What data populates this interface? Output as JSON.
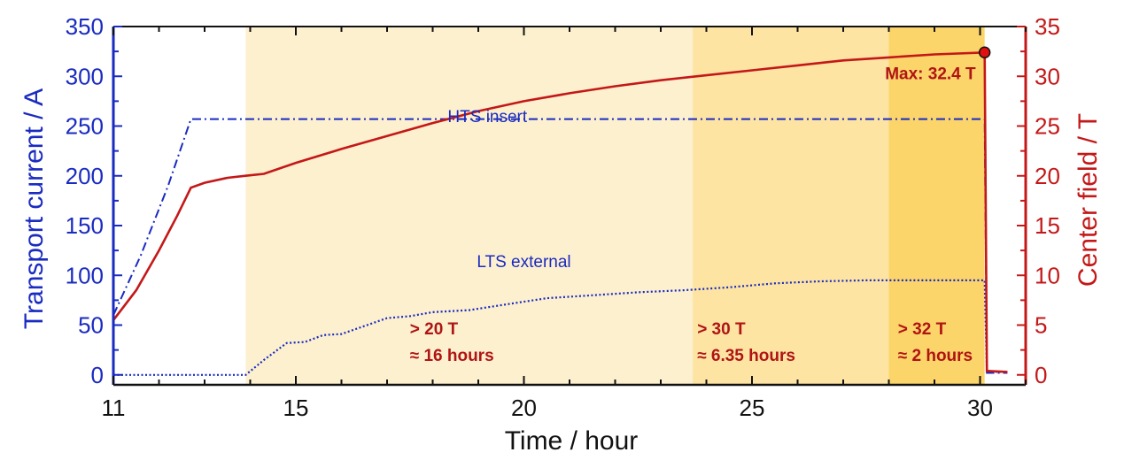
{
  "chart_data": {
    "type": "line",
    "title": "",
    "xlabel": "Time / hour",
    "ylabel_left": "Transport current / A",
    "ylabel_right": "Center field / T",
    "xlim": [
      11,
      31
    ],
    "ylim_left": [
      -10,
      350
    ],
    "ylim_right": [
      -1,
      35
    ],
    "x_ticks": [
      11,
      15,
      20,
      25,
      30
    ],
    "y_left_ticks": [
      0,
      50,
      100,
      150,
      200,
      250,
      300,
      350
    ],
    "y_right_ticks": [
      0,
      5,
      10,
      15,
      20,
      25,
      30,
      35
    ],
    "colors": {
      "current_axis": "#1a2bc0",
      "field_axis": "#c41818",
      "band_20T": "#fdf0cf",
      "band_30T": "#fde4a3",
      "band_32T": "#fbd46a"
    },
    "shaded_regions": [
      {
        "x_start": 13.9,
        "x_end": 23.7,
        "label_line1": "> 20 T",
        "label_line2": "≈ 16 hours"
      },
      {
        "x_start": 23.7,
        "x_end": 28.0,
        "label_line1": "> 30 T",
        "label_line2": "≈ 6.35 hours"
      },
      {
        "x_start": 28.0,
        "x_end": 30.1,
        "label_line1": "> 32 T",
        "label_line2": "≈ 2 hours"
      }
    ],
    "series": [
      {
        "name": "HTS insert",
        "axis": "left",
        "style": "dash-dot",
        "points": [
          [
            11.0,
            60
          ],
          [
            11.6,
            120
          ],
          [
            12.2,
            190
          ],
          [
            12.7,
            257
          ],
          [
            30.0,
            257
          ],
          [
            30.1,
            257
          ],
          [
            30.15,
            2
          ],
          [
            30.6,
            2
          ]
        ]
      },
      {
        "name": "LTS external",
        "axis": "left",
        "style": "dotted",
        "points": [
          [
            11.0,
            0
          ],
          [
            13.9,
            0
          ],
          [
            14.3,
            15
          ],
          [
            14.8,
            32
          ],
          [
            15.2,
            33
          ],
          [
            15.6,
            40
          ],
          [
            16.0,
            41
          ],
          [
            16.5,
            49
          ],
          [
            17.0,
            57
          ],
          [
            17.5,
            59
          ],
          [
            18.0,
            63
          ],
          [
            18.8,
            65
          ],
          [
            19.5,
            70
          ],
          [
            20.5,
            77
          ],
          [
            21.5,
            80
          ],
          [
            22.5,
            83
          ],
          [
            23.5,
            85
          ],
          [
            24.5,
            88
          ],
          [
            25.5,
            92
          ],
          [
            26.5,
            94
          ],
          [
            27.5,
            95
          ],
          [
            30.1,
            95
          ],
          [
            30.15,
            3
          ],
          [
            30.6,
            3
          ]
        ]
      },
      {
        "name": "Center field",
        "axis": "right",
        "style": "solid",
        "points": [
          [
            11.0,
            5.5
          ],
          [
            11.5,
            8.5
          ],
          [
            12.0,
            12.5
          ],
          [
            12.4,
            16.0
          ],
          [
            12.7,
            18.8
          ],
          [
            13.0,
            19.3
          ],
          [
            13.5,
            19.8
          ],
          [
            13.9,
            20.0
          ],
          [
            14.3,
            20.2
          ],
          [
            15.0,
            21.3
          ],
          [
            16.0,
            22.7
          ],
          [
            17.0,
            24.0
          ],
          [
            18.0,
            25.3
          ],
          [
            19.0,
            26.5
          ],
          [
            20.0,
            27.5
          ],
          [
            21.0,
            28.3
          ],
          [
            22.0,
            29.0
          ],
          [
            23.0,
            29.6
          ],
          [
            24.0,
            30.1
          ],
          [
            25.0,
            30.6
          ],
          [
            26.0,
            31.1
          ],
          [
            27.0,
            31.6
          ],
          [
            28.0,
            31.9
          ],
          [
            29.0,
            32.2
          ],
          [
            30.1,
            32.4
          ],
          [
            30.15,
            0.4
          ],
          [
            30.6,
            0.3
          ]
        ]
      }
    ],
    "annotations": {
      "max_label": "Max: 32.4 T",
      "max_point": [
        30.1,
        32.4
      ],
      "hts_label": "HTS insert",
      "hts_label_pos": [
        19.2,
        270
      ],
      "lts_label": "LTS external",
      "lts_label_pos": [
        20.0,
        111
      ]
    }
  }
}
